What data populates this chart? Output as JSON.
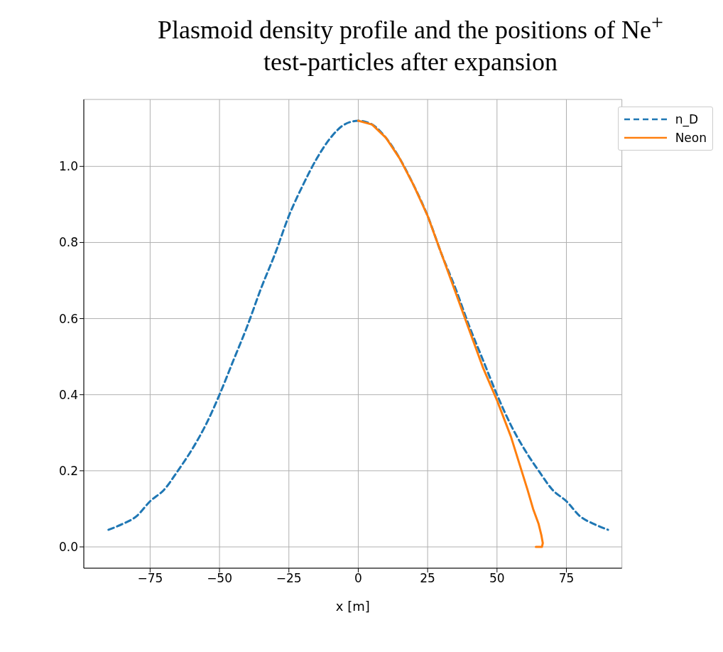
{
  "chart_data": {
    "type": "line",
    "title": "Plasmoid density profile and the positions of Ne$^{+}$ test-particles after expansion",
    "xlabel": "x [m]",
    "xlim": [
      -98.9,
      95
    ],
    "xticks": [
      {
        "value": -75,
        "label": "−75"
      },
      {
        "value": -50,
        "label": "−50"
      },
      {
        "value": -25,
        "label": "−25"
      },
      0,
      25,
      50,
      75
    ],
    "ylim": [
      -0.056,
      1.176
    ],
    "yticks": [
      {
        "value": 0,
        "label": "0.0"
      },
      {
        "value": 0.2,
        "label": "0.2"
      },
      {
        "value": 0.4,
        "label": "0.4"
      },
      {
        "value": 0.6,
        "label": "0.6"
      },
      {
        "value": 0.8,
        "label": "0.8"
      },
      {
        "value": 1,
        "label": "1.0"
      }
    ],
    "grid": true,
    "legend": "top right",
    "series": [
      {
        "name": "n_D",
        "color": "#1f77b4",
        "line_style": "dashed",
        "x": [
          -90,
          -85,
          -80,
          -75,
          -70,
          -65,
          -60,
          -55,
          -50,
          -45,
          -40,
          -35,
          -30,
          -25,
          -20,
          -15,
          -10,
          -5,
          0,
          5,
          10,
          15,
          20,
          25,
          30,
          35,
          40,
          45,
          50,
          55,
          60,
          65,
          70,
          75,
          80,
          85,
          90
        ],
        "values": [
          0.045,
          0.06,
          0.08,
          0.12,
          0.15,
          0.2,
          0.255,
          0.32,
          0.4,
          0.49,
          0.58,
          0.68,
          0.77,
          0.87,
          0.95,
          1.02,
          1.075,
          1.11,
          1.12,
          1.11,
          1.075,
          1.02,
          0.95,
          0.87,
          0.77,
          0.68,
          0.58,
          0.49,
          0.4,
          0.32,
          0.255,
          0.2,
          0.15,
          0.12,
          0.08,
          0.06,
          0.045
        ]
      },
      {
        "name": "Neon",
        "color": "#ff7f0e",
        "line_style": "solid",
        "x": [
          0,
          5,
          10,
          15,
          20,
          25,
          30,
          35,
          40,
          45,
          50,
          55,
          58,
          61,
          63,
          65,
          66,
          66.5,
          66.2,
          64
        ],
        "values": [
          1.12,
          1.11,
          1.075,
          1.02,
          0.95,
          0.87,
          0.77,
          0.67,
          0.57,
          0.47,
          0.385,
          0.29,
          0.22,
          0.15,
          0.1,
          0.06,
          0.03,
          0.01,
          0,
          0
        ]
      }
    ]
  }
}
